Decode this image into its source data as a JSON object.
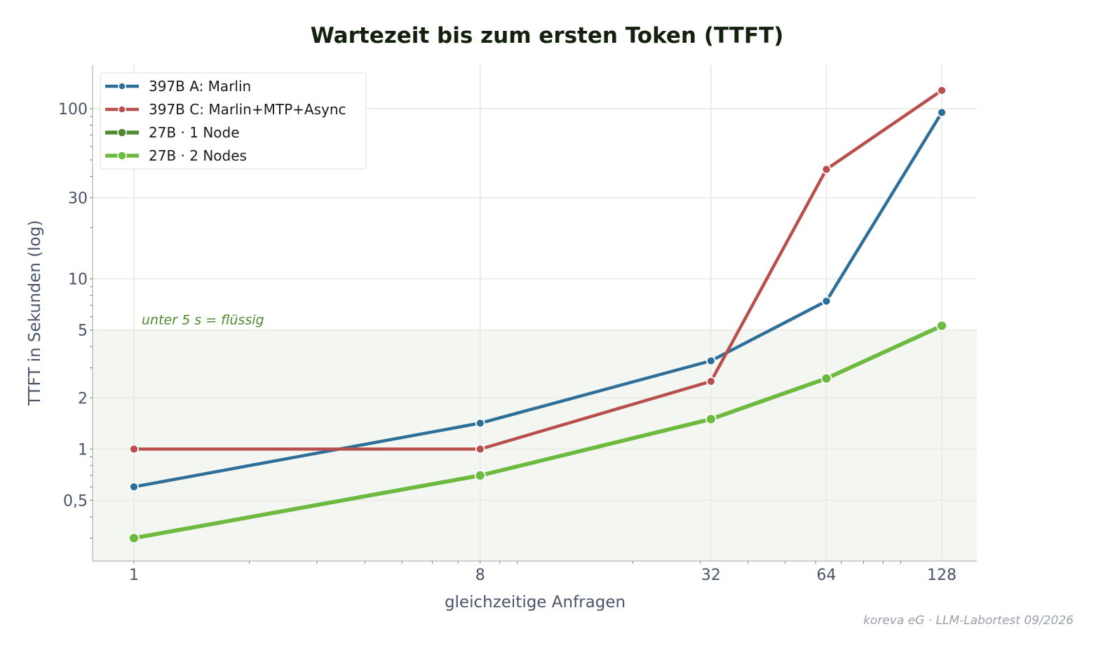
{
  "chart_data": {
    "type": "line",
    "title": "Wartezeit bis zum ersten Token (TTFT)",
    "xlabel": "gleichzeitige Anfragen",
    "ylabel": "TTFT in Sekunden (log)",
    "x_scale": "log",
    "y_scale": "log",
    "x": [
      1,
      8,
      32,
      64,
      128
    ],
    "x_tick_labels": [
      "1",
      "8",
      "32",
      "64",
      "128"
    ],
    "xlim": [
      0.78,
      158
    ],
    "ylim": [
      0.22,
      180
    ],
    "y_ticks": [
      0.5,
      1,
      2,
      5,
      10,
      30,
      100
    ],
    "y_tick_labels": [
      "0,5",
      "1",
      "2",
      "5",
      "10",
      "30",
      "100"
    ],
    "grid": true,
    "legend_position": "top-left",
    "series": [
      {
        "name": "397B A: Marlin",
        "color": "#2e6f9a",
        "values": [
          0.6,
          1.42,
          3.3,
          7.4,
          95
        ]
      },
      {
        "name": "397B C: Marlin+MTP+Async",
        "color": "#b84f4c",
        "values": [
          1.0,
          1.0,
          2.5,
          44,
          128
        ]
      },
      {
        "name": "27B · 1 Node",
        "color": "#4f8a2f",
        "values": [
          0.3,
          0.7,
          1.5,
          2.6,
          5.3
        ]
      },
      {
        "name": "27B · 2 Nodes",
        "color": "#6cba3e",
        "values": [
          0.3,
          0.7,
          1.5,
          2.6,
          5.3
        ]
      }
    ],
    "threshold": {
      "value": 5,
      "label": "unter 5 s = flüssig",
      "color": "#4e8a2f"
    }
  },
  "credit": "koreva eG · LLM-Labortest 09/2026"
}
